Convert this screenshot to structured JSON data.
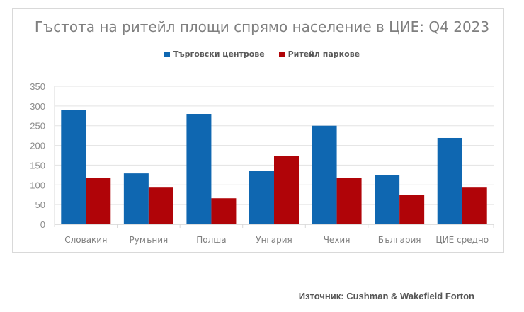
{
  "chart_data": {
    "type": "bar",
    "title": "Гъстота на ритейл площи спрямо население в ЦИЕ: Q4 2023",
    "categories": [
      "Словакия",
      "Румъния",
      "Полша",
      "Унгария",
      "Чехия",
      "България",
      "ЦИЕ средно"
    ],
    "series": [
      {
        "name": "Търговски центрове",
        "color": "#0f67b1",
        "values": [
          289,
          129,
          280,
          136,
          250,
          124,
          219
        ]
      },
      {
        "name": "Ритейл паркове",
        "color": "#b00408",
        "values": [
          118,
          93,
          66,
          174,
          117,
          75,
          93
        ]
      }
    ],
    "ylim": [
      0,
      350
    ],
    "yticks": [
      0,
      50,
      100,
      150,
      200,
      250,
      300,
      350
    ],
    "grid": true,
    "legend": "top"
  },
  "source": "Източник: Cushman & Wakefield Forton"
}
